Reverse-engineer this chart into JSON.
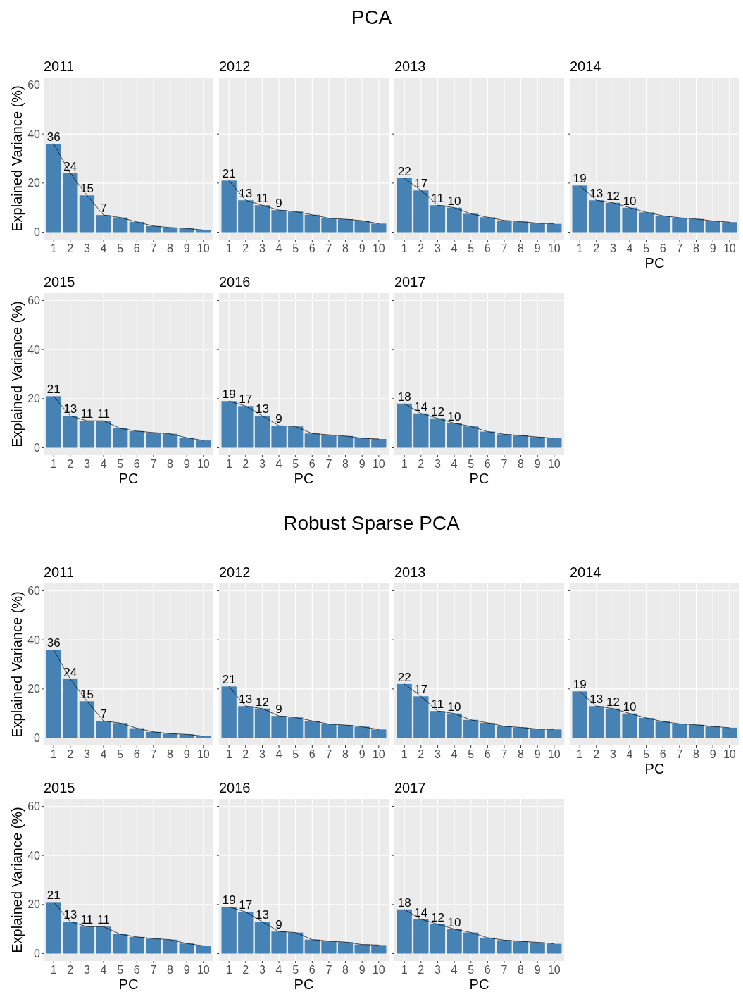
{
  "chart_data": [
    {
      "type": "bar",
      "title": "2011",
      "annotations": [
        "PCA"
      ],
      "ylabel": "Explained Variance (%)",
      "categories": [
        "1",
        "2",
        "3",
        "4",
        "5",
        "6",
        "7",
        "8",
        "9",
        "10"
      ],
      "ylim": [
        -3,
        63
      ],
      "yticks": [
        0,
        20,
        40,
        60
      ],
      "grid": true,
      "series": [
        {
          "color": "#4682b4",
          "values": [
            36,
            24,
            15,
            7,
            6.0,
            4.2,
            2.5,
            1.9,
            1.5,
            0.9
          ],
          "value_labels": [
            "36",
            "24",
            "15",
            "7",
            null,
            null,
            null,
            null,
            null,
            null
          ]
        },
        {
          "type": "line",
          "color": "#000000",
          "values": [
            36,
            24,
            15,
            7,
            6.0,
            4.2,
            2.5,
            1.9,
            1.5,
            0.9
          ]
        }
      ]
    },
    {
      "type": "bar",
      "title": "2012",
      "categories": [
        "1",
        "2",
        "3",
        "4",
        "5",
        "6",
        "7",
        "8",
        "9",
        "10"
      ],
      "ylim": [
        -3,
        63
      ],
      "yticks": [
        0,
        20,
        40,
        60
      ],
      "tick_labels": "x",
      "grid": true,
      "series": [
        {
          "color": "#4682b4",
          "values": [
            21,
            13,
            11,
            9,
            8.4,
            7.1,
            5.7,
            5.3,
            4.7,
            3.5
          ],
          "value_labels": [
            "21",
            "13",
            "11",
            "9",
            null,
            null,
            null,
            null,
            null,
            null
          ]
        },
        {
          "type": "line",
          "color": "#000000",
          "values": [
            21,
            13,
            11,
            9,
            8.4,
            7.1,
            5.7,
            5.3,
            4.7,
            3.5
          ]
        }
      ]
    },
    {
      "type": "bar",
      "title": "2013",
      "categories": [
        "1",
        "2",
        "3",
        "4",
        "5",
        "6",
        "7",
        "8",
        "9",
        "10"
      ],
      "ylim": [
        -3,
        63
      ],
      "yticks": [
        0,
        20,
        40,
        60
      ],
      "tick_labels": "x",
      "grid": true,
      "series": [
        {
          "color": "#4682b4",
          "values": [
            22,
            17,
            11,
            10,
            7.5,
            6.1,
            4.8,
            4.3,
            3.7,
            3.4
          ],
          "value_labels": [
            "22",
            "17",
            "11",
            "10",
            null,
            null,
            null,
            null,
            null,
            null
          ]
        },
        {
          "type": "line",
          "color": "#000000",
          "values": [
            22,
            17,
            11,
            10,
            7.5,
            6.1,
            4.8,
            4.3,
            3.7,
            3.4
          ]
        }
      ]
    },
    {
      "type": "bar",
      "title": "2014",
      "xlabel": "PC",
      "categories": [
        "1",
        "2",
        "3",
        "4",
        "5",
        "6",
        "7",
        "8",
        "9",
        "10"
      ],
      "ylim": [
        -3,
        63
      ],
      "yticks": [
        0,
        20,
        40,
        60
      ],
      "tick_labels": "x",
      "grid": true,
      "series": [
        {
          "color": "#4682b4",
          "values": [
            19,
            13,
            12,
            10,
            8.1,
            6.7,
            5.9,
            5.4,
            4.6,
            4.1
          ],
          "value_labels": [
            "19",
            "13",
            "12",
            "10",
            null,
            null,
            null,
            null,
            null,
            null
          ]
        },
        {
          "type": "line",
          "color": "#000000",
          "values": [
            19,
            13,
            12,
            10,
            8.1,
            6.7,
            5.9,
            5.4,
            4.6,
            4.1
          ]
        }
      ]
    },
    {
      "type": "bar",
      "title": "2015",
      "ylabel": "Explained Variance (%)",
      "xlabel": "PC",
      "categories": [
        "1",
        "2",
        "3",
        "4",
        "5",
        "6",
        "7",
        "8",
        "9",
        "10"
      ],
      "ylim": [
        -3,
        63
      ],
      "yticks": [
        0,
        20,
        40,
        60
      ],
      "grid": true,
      "series": [
        {
          "color": "#4682b4",
          "values": [
            21,
            13,
            11,
            11,
            7.9,
            6.8,
            6.2,
            5.7,
            4.1,
            3.0
          ],
          "value_labels": [
            "21",
            "13",
            "11",
            "11",
            null,
            null,
            null,
            null,
            null,
            null
          ]
        },
        {
          "type": "line",
          "color": "#000000",
          "values": [
            21,
            13,
            11,
            11,
            7.9,
            6.8,
            6.2,
            5.7,
            4.1,
            3.0
          ]
        }
      ]
    },
    {
      "type": "bar",
      "title": "2016",
      "xlabel": "PC",
      "categories": [
        "1",
        "2",
        "3",
        "4",
        "5",
        "6",
        "7",
        "8",
        "9",
        "10"
      ],
      "ylim": [
        -3,
        63
      ],
      "yticks": [
        0,
        20,
        40,
        60
      ],
      "tick_labels": "x",
      "grid": true,
      "series": [
        {
          "color": "#4682b4",
          "values": [
            19,
            17,
            13,
            9,
            8.7,
            5.8,
            5.3,
            4.8,
            3.9,
            3.6
          ],
          "value_labels": [
            "19",
            "17",
            "13",
            "9",
            null,
            null,
            null,
            null,
            null,
            null
          ]
        },
        {
          "type": "line",
          "color": "#000000",
          "values": [
            19,
            17,
            13,
            9,
            8.7,
            5.8,
            5.3,
            4.8,
            3.9,
            3.6
          ]
        }
      ]
    },
    {
      "type": "bar",
      "title": "2017",
      "xlabel": "PC",
      "categories": [
        "1",
        "2",
        "3",
        "4",
        "5",
        "6",
        "7",
        "8",
        "9",
        "10"
      ],
      "ylim": [
        -3,
        63
      ],
      "yticks": [
        0,
        20,
        40,
        60
      ],
      "tick_labels": "x",
      "grid": true,
      "series": [
        {
          "color": "#4682b4",
          "values": [
            18,
            14,
            12,
            10,
            8.7,
            6.6,
            5.5,
            5.0,
            4.4,
            3.9
          ],
          "value_labels": [
            "18",
            "14",
            "12",
            "10",
            null,
            null,
            null,
            null,
            null,
            null
          ]
        },
        {
          "type": "line",
          "color": "#000000",
          "values": [
            18,
            14,
            12,
            10,
            8.7,
            6.6,
            5.5,
            5.0,
            4.4,
            3.9
          ]
        }
      ]
    },
    {
      "type": "bar",
      "title": "2011",
      "annotations": [
        "Robust Sparse PCA"
      ],
      "ylabel": "Explained Variance (%)",
      "categories": [
        "1",
        "2",
        "3",
        "4",
        "5",
        "6",
        "7",
        "8",
        "9",
        "10"
      ],
      "ylim": [
        -3,
        63
      ],
      "yticks": [
        0,
        20,
        40,
        60
      ],
      "grid": true,
      "series": [
        {
          "color": "#4682b4",
          "values": [
            36,
            24,
            15,
            7,
            6.1,
            4.0,
            2.5,
            1.8,
            1.5,
            0.8
          ],
          "value_labels": [
            "36",
            "24",
            "15",
            "7",
            null,
            null,
            null,
            null,
            null,
            null
          ]
        },
        {
          "type": "line",
          "color": "#000000",
          "values": [
            36,
            24,
            15,
            7,
            6.1,
            4.0,
            2.5,
            1.8,
            1.5,
            0.8
          ]
        }
      ]
    },
    {
      "type": "bar",
      "title": "2012",
      "categories": [
        "1",
        "2",
        "3",
        "4",
        "5",
        "6",
        "7",
        "8",
        "9",
        "10"
      ],
      "ylim": [
        -3,
        63
      ],
      "yticks": [
        0,
        20,
        40,
        60
      ],
      "tick_labels": "x",
      "grid": true,
      "series": [
        {
          "color": "#4682b4",
          "values": [
            21,
            13,
            12,
            9,
            8.4,
            7.0,
            5.7,
            5.3,
            4.6,
            3.5
          ],
          "value_labels": [
            "21",
            "13",
            "12",
            "9",
            null,
            null,
            null,
            null,
            null,
            null
          ]
        },
        {
          "type": "line",
          "color": "#000000",
          "values": [
            21,
            13,
            12,
            9,
            8.4,
            7.0,
            5.7,
            5.3,
            4.6,
            3.5
          ]
        }
      ]
    },
    {
      "type": "bar",
      "title": "2013",
      "categories": [
        "1",
        "2",
        "3",
        "4",
        "5",
        "6",
        "7",
        "8",
        "9",
        "10"
      ],
      "ylim": [
        -3,
        63
      ],
      "yticks": [
        0,
        20,
        40,
        60
      ],
      "tick_labels": "x",
      "grid": true,
      "series": [
        {
          "color": "#4682b4",
          "values": [
            22,
            17,
            11,
            10,
            7.4,
            6.2,
            4.8,
            4.3,
            3.7,
            3.5
          ],
          "value_labels": [
            "22",
            "17",
            "11",
            "10",
            null,
            null,
            null,
            null,
            null,
            null
          ]
        },
        {
          "type": "line",
          "color": "#000000",
          "values": [
            22,
            17,
            11,
            10,
            7.4,
            6.2,
            4.8,
            4.3,
            3.7,
            3.5
          ]
        }
      ]
    },
    {
      "type": "bar",
      "title": "2014",
      "xlabel": "PC",
      "categories": [
        "1",
        "2",
        "3",
        "4",
        "5",
        "6",
        "7",
        "8",
        "9",
        "10"
      ],
      "ylim": [
        -3,
        63
      ],
      "yticks": [
        0,
        20,
        40,
        60
      ],
      "tick_labels": "x",
      "grid": true,
      "series": [
        {
          "color": "#4682b4",
          "values": [
            19,
            13,
            12,
            10,
            8.2,
            6.7,
            5.8,
            5.4,
            4.7,
            4.2
          ],
          "value_labels": [
            "19",
            "13",
            "12",
            "10",
            null,
            null,
            null,
            null,
            null,
            null
          ]
        },
        {
          "type": "line",
          "color": "#000000",
          "values": [
            19,
            13,
            12,
            10,
            8.2,
            6.7,
            5.8,
            5.4,
            4.7,
            4.2
          ]
        }
      ]
    },
    {
      "type": "bar",
      "title": "2015",
      "ylabel": "Explained Variance (%)",
      "xlabel": "PC",
      "categories": [
        "1",
        "2",
        "3",
        "4",
        "5",
        "6",
        "7",
        "8",
        "9",
        "10"
      ],
      "ylim": [
        -3,
        63
      ],
      "yticks": [
        0,
        20,
        40,
        60
      ],
      "grid": true,
      "series": [
        {
          "color": "#4682b4",
          "values": [
            21,
            13,
            11,
            11,
            7.9,
            6.8,
            6.1,
            5.7,
            4.1,
            3.2
          ],
          "value_labels": [
            "21",
            "13",
            "11",
            "11",
            null,
            null,
            null,
            null,
            null,
            null
          ]
        },
        {
          "type": "line",
          "color": "#000000",
          "values": [
            21,
            13,
            11,
            11,
            7.9,
            6.8,
            6.1,
            5.7,
            4.1,
            3.2
          ]
        }
      ]
    },
    {
      "type": "bar",
      "title": "2016",
      "xlabel": "PC",
      "categories": [
        "1",
        "2",
        "3",
        "4",
        "5",
        "6",
        "7",
        "8",
        "9",
        "10"
      ],
      "ylim": [
        -3,
        63
      ],
      "yticks": [
        0,
        20,
        40,
        60
      ],
      "tick_labels": "x",
      "grid": true,
      "series": [
        {
          "color": "#4682b4",
          "values": [
            19,
            17,
            13,
            9,
            8.6,
            5.7,
            5.1,
            4.7,
            3.7,
            3.5
          ],
          "value_labels": [
            "19",
            "17",
            "13",
            "9",
            null,
            null,
            null,
            null,
            null,
            null
          ]
        },
        {
          "type": "line",
          "color": "#000000",
          "values": [
            19,
            17,
            13,
            9,
            8.6,
            5.7,
            5.1,
            4.7,
            3.7,
            3.5
          ]
        }
      ]
    },
    {
      "type": "bar",
      "title": "2017",
      "xlabel": "PC",
      "categories": [
        "1",
        "2",
        "3",
        "4",
        "5",
        "6",
        "7",
        "8",
        "9",
        "10"
      ],
      "ylim": [
        -3,
        63
      ],
      "yticks": [
        0,
        20,
        40,
        60
      ],
      "tick_labels": "x",
      "grid": true,
      "series": [
        {
          "color": "#4682b4",
          "values": [
            18,
            14,
            12,
            10,
            8.6,
            6.5,
            5.5,
            5.0,
            4.6,
            4.0
          ],
          "value_labels": [
            "18",
            "14",
            "12",
            "10",
            null,
            null,
            null,
            null,
            null,
            null
          ]
        },
        {
          "type": "line",
          "color": "#000000",
          "values": [
            18,
            14,
            12,
            10,
            8.6,
            6.5,
            5.5,
            5.0,
            4.6,
            4.0
          ]
        }
      ]
    }
  ]
}
